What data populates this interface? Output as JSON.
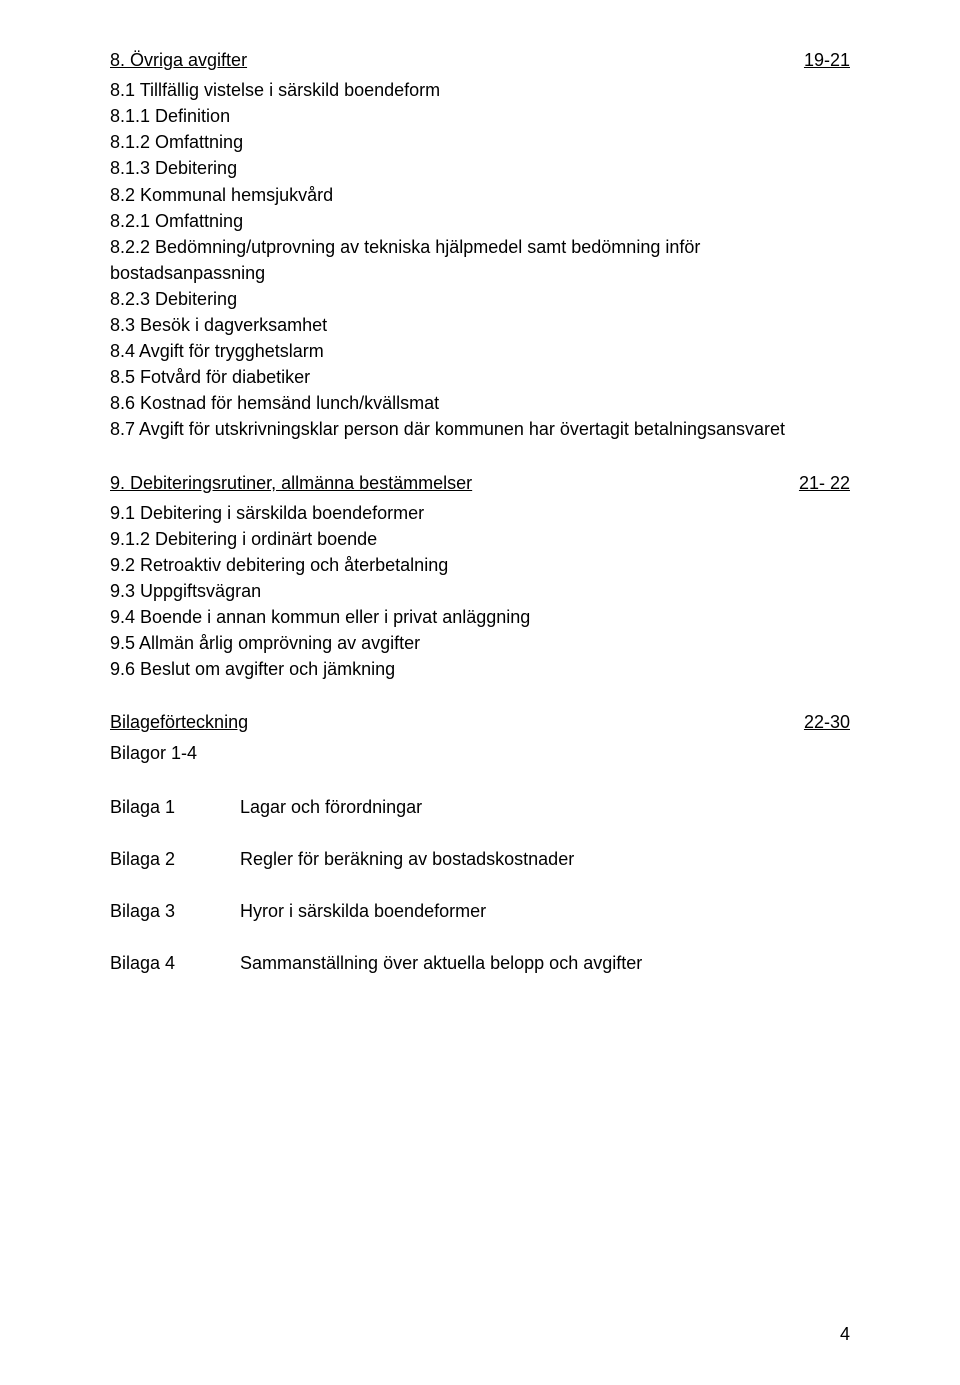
{
  "section8": {
    "heading": "8. Övriga avgifter",
    "pages": "19-21",
    "items": [
      "8.1 Tillfällig vistelse i särskild boendeform",
      "8.1.1 Definition",
      "8.1.2 Omfattning",
      "8.1.3 Debitering",
      "8.2 Kommunal hemsjukvård",
      "8.2.1 Omfattning",
      "8.2.2 Bedömning/utprovning av tekniska hjälpmedel samt bedömning inför bostadsanpassning",
      "8.2.3 Debitering",
      "8.3 Besök i dagverksamhet",
      "8.4 Avgift för trygghetslarm",
      "8.5 Fotvård för diabetiker",
      "8.6 Kostnad för hemsänd lunch/kvällsmat",
      "8.7 Avgift för utskrivningsklar person där kommunen har övertagit betalningsansvaret"
    ]
  },
  "section9": {
    "heading": "9. Debiteringsrutiner, allmänna bestämmelser",
    "pages": "21- 22",
    "items": [
      "9.1 Debitering i särskilda boendeformer",
      "9.1.2 Debitering i ordinärt boende",
      "9.2 Retroaktiv debitering och återbetalning",
      "9.3 Uppgiftsvägran",
      "9.4 Boende i annan kommun eller i privat anläggning",
      "9.5 Allmän årlig omprövning av avgifter",
      "9.6 Beslut om avgifter och jämkning"
    ]
  },
  "bilagor": {
    "heading": "Bilageförteckning",
    "pages": "22-30",
    "subtitle": "Bilagor 1-4",
    "rows": [
      {
        "label": "Bilaga 1",
        "text": "Lagar och förordningar"
      },
      {
        "label": "Bilaga 2",
        "text": "Regler för beräkning av bostadskostnader"
      },
      {
        "label": "Bilaga 3",
        "text": "Hyror i särskilda boendeformer"
      },
      {
        "label": "Bilaga 4",
        "text": "Sammanställning över aktuella belopp och avgifter"
      }
    ]
  },
  "pageNumber": "4"
}
